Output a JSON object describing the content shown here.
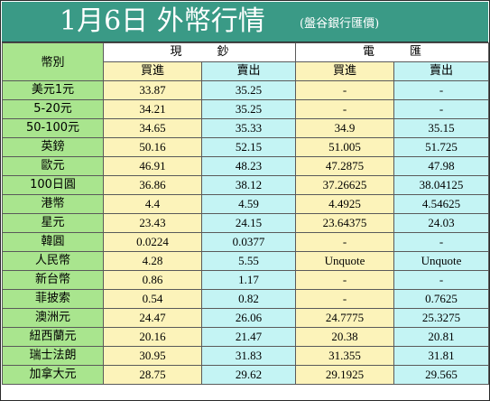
{
  "title": {
    "main": "1月6日 外幣行情",
    "sub": "(盤谷銀行匯價)"
  },
  "header": {
    "currency_label": "幣別",
    "cash_group": "現　　　鈔",
    "transfer_group": "電　　　匯",
    "buy": "買進",
    "sell": "賣出"
  },
  "colors": {
    "title_bg": "#3a9a86",
    "name_col_bg": "#a9e58e",
    "cash_bg": "#fcf3ba",
    "transfer_bg": "#c4f4f4"
  },
  "rows": [
    {
      "name": "美元1元",
      "cash_buy": "33.87",
      "cash_sell": "35.25",
      "tt_buy": "-",
      "tt_sell": "-"
    },
    {
      "name": "5-20元",
      "cash_buy": "34.21",
      "cash_sell": "35.25",
      "tt_buy": "-",
      "tt_sell": "-"
    },
    {
      "name": "50-100元",
      "cash_buy": "34.65",
      "cash_sell": "35.33",
      "tt_buy": "34.9",
      "tt_sell": "35.15"
    },
    {
      "name": "英鎊",
      "cash_buy": "50.16",
      "cash_sell": "52.15",
      "tt_buy": "51.005",
      "tt_sell": "51.725"
    },
    {
      "name": "歐元",
      "cash_buy": "46.91",
      "cash_sell": "48.23",
      "tt_buy": "47.2875",
      "tt_sell": "47.98"
    },
    {
      "name": "100日圓",
      "cash_buy": "36.86",
      "cash_sell": "38.12",
      "tt_buy": "37.26625",
      "tt_sell": "38.04125"
    },
    {
      "name": "港幣",
      "cash_buy": "4.4",
      "cash_sell": "4.59",
      "tt_buy": "4.4925",
      "tt_sell": "4.54625"
    },
    {
      "name": "星元",
      "cash_buy": "23.43",
      "cash_sell": "24.15",
      "tt_buy": "23.64375",
      "tt_sell": "24.03"
    },
    {
      "name": "韓圓",
      "cash_buy": "0.0224",
      "cash_sell": "0.0377",
      "tt_buy": "-",
      "tt_sell": "-"
    },
    {
      "name": "人民幣",
      "cash_buy": "4.28",
      "cash_sell": "5.55",
      "tt_buy": "Unquote",
      "tt_sell": "Unquote"
    },
    {
      "name": "新台幣",
      "cash_buy": "0.86",
      "cash_sell": "1.17",
      "tt_buy": "-",
      "tt_sell": "-"
    },
    {
      "name": "菲披索",
      "cash_buy": "0.54",
      "cash_sell": "0.82",
      "tt_buy": "-",
      "tt_sell": "0.7625"
    },
    {
      "name": "澳洲元",
      "cash_buy": "24.47",
      "cash_sell": "26.06",
      "tt_buy": "24.7775",
      "tt_sell": "25.3275"
    },
    {
      "name": "紐西蘭元",
      "cash_buy": "20.16",
      "cash_sell": "21.47",
      "tt_buy": "20.38",
      "tt_sell": "20.81"
    },
    {
      "name": "瑞士法朗",
      "cash_buy": "30.95",
      "cash_sell": "31.83",
      "tt_buy": "31.355",
      "tt_sell": "31.81"
    },
    {
      "name": "加拿大元",
      "cash_buy": "28.75",
      "cash_sell": "29.62",
      "tt_buy": "29.1925",
      "tt_sell": "29.565"
    }
  ]
}
